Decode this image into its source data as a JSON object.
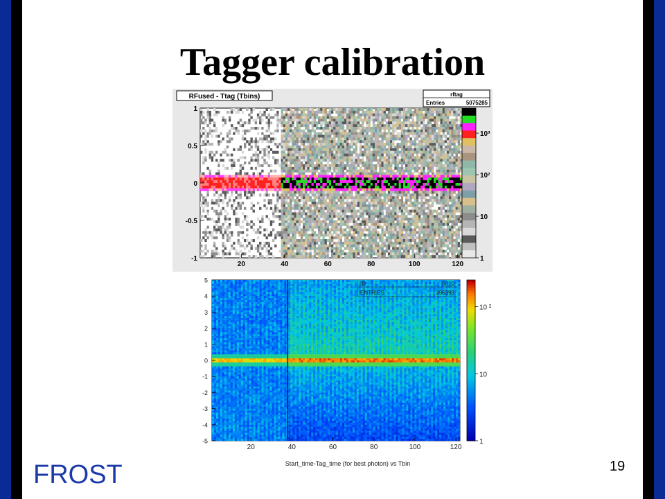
{
  "slide": {
    "title": "Tagger calibration",
    "footer": "FROST",
    "page_number": "19"
  },
  "colors": {
    "side_bar_blue": "#0a2a96",
    "footer_blue": "#1a3aa8"
  },
  "chart_data": [
    {
      "type": "heatmap",
      "title": "RFused - Ttag (Tbins)",
      "stats_box": {
        "name": "rftag",
        "entries_label": "Entries",
        "entries_value": "5075285"
      },
      "xlabel": "",
      "ylabel": "",
      "xlim": [
        1,
        122
      ],
      "ylim": [
        -1,
        1
      ],
      "x_ticks": [
        20,
        40,
        60,
        80,
        100,
        120
      ],
      "y_ticks": [
        -1,
        -0.5,
        0,
        0.5,
        1
      ],
      "y_tick_labels": [
        "-1",
        "-0.5",
        "0",
        "0.5",
        "1"
      ],
      "z_scale": "log",
      "z_ticks": [
        1,
        10,
        100,
        1000
      ],
      "z_tick_labels": [
        "1",
        "10",
        "10²",
        "10³"
      ],
      "peak_y": 0,
      "discontinuity_x": 38
    },
    {
      "type": "heatmap",
      "title": "Start_time-Tag_time (for best photon) vs Tbin",
      "stats_box": {
        "id_label": "ID",
        "id_value": "5010",
        "entries_label": "ENTRIES",
        "entries_value": "396399"
      },
      "xlabel": "",
      "ylabel": "",
      "xlim": [
        1,
        122
      ],
      "ylim": [
        -5,
        5
      ],
      "x_ticks": [
        20,
        40,
        60,
        80,
        100,
        120
      ],
      "y_ticks": [
        -5,
        -4,
        -3,
        -2,
        -1,
        0,
        1,
        2,
        3,
        4,
        5
      ],
      "z_scale": "log",
      "z_ticks": [
        1,
        10,
        100
      ],
      "z_tick_labels": [
        "1",
        "10",
        "10 ²"
      ],
      "peak_y": 0,
      "discontinuity_x": 38
    }
  ]
}
